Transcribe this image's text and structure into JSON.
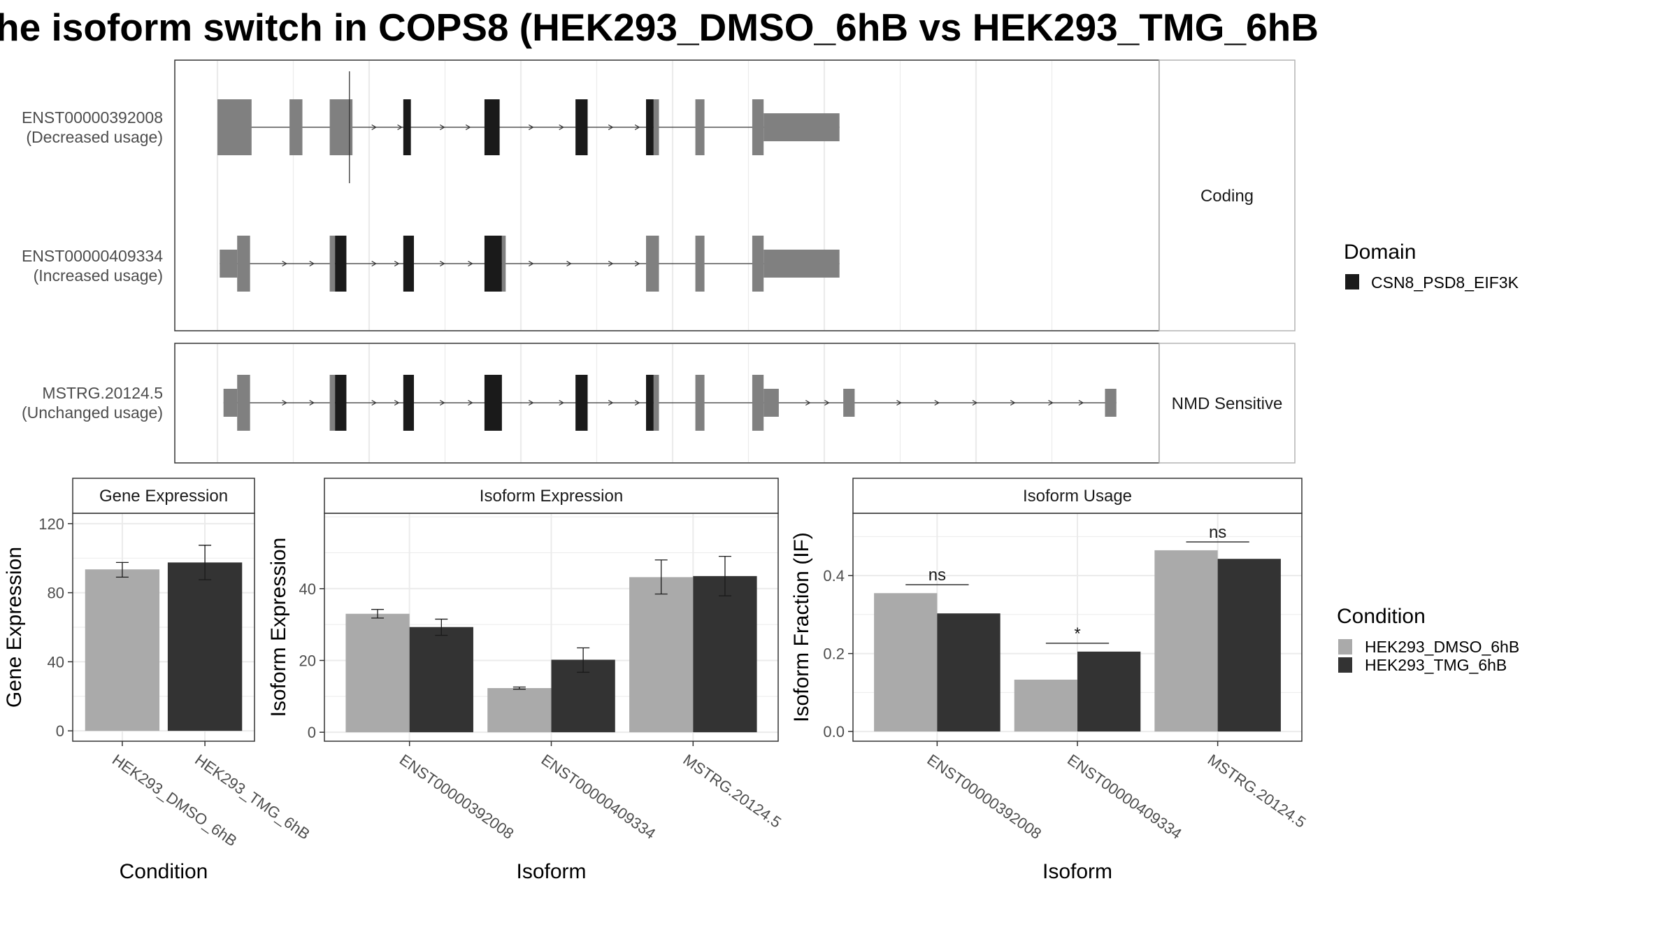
{
  "title": "he isoform switch in COPS8 (HEK293_DMSO_6hB vs HEK293_TMG_6hB",
  "colors": {
    "utr": "#808080",
    "domain": "#1a1a1a",
    "dmso": "#aaaaaa",
    "tmg": "#333333",
    "grid": "#ebebeb",
    "panel_border": "#333333",
    "strip_border": "#b3b3b3"
  },
  "structure": {
    "groups": [
      {
        "label": "Coding",
        "isoforms": [
          {
            "id": "ENST00000392008",
            "usage": "(Decreased usage)",
            "exons": [
              [
                0,
                4.5,
                "utr"
              ],
              [
                9.5,
                11.2,
                "utr"
              ],
              [
                14.8,
                17.8,
                "utr"
              ],
              [
                24.5,
                25.5,
                "domain"
              ],
              [
                35.2,
                37.2,
                "domain"
              ],
              [
                47.2,
                48.8,
                "domain"
              ],
              [
                56.5,
                57.5,
                "domain"
              ],
              [
                57.5,
                58.2,
                "utr"
              ],
              [
                63,
                64.2,
                "utr"
              ],
              [
                70.5,
                72,
                "utr"
              ],
              [
                72,
                82,
                "utr-half"
              ]
            ],
            "arrows": [
              20.8,
              24.2,
              29.8,
              33.2,
              41.5,
              45.5,
              52,
              55.5
            ]
          },
          {
            "id": "ENST00000409334",
            "usage": "(Increased usage)",
            "exons": [
              [
                0.3,
                2.6,
                "utr-half"
              ],
              [
                2.6,
                4.3,
                "utr"
              ],
              [
                14.8,
                15.5,
                "utr"
              ],
              [
                15.5,
                17,
                "domain"
              ],
              [
                24.5,
                25.9,
                "domain"
              ],
              [
                35.2,
                37.5,
                "domain"
              ],
              [
                37.5,
                38,
                "utr"
              ],
              [
                56.5,
                58.2,
                "utr"
              ],
              [
                63,
                64.2,
                "utr"
              ],
              [
                70.5,
                72,
                "utr"
              ],
              [
                72,
                82,
                "utr-half"
              ]
            ],
            "arrows": [
              9,
              12.6,
              20.8,
              23.8,
              29.8,
              33.5,
              41.5,
              46.5,
              52,
              55.5
            ]
          }
        ]
      },
      {
        "label": "NMD Sensitive",
        "isoforms": [
          {
            "id": "MSTRG.20124.5",
            "usage": "(Unchanged usage)",
            "exons": [
              [
                0.8,
                2.6,
                "utr-half"
              ],
              [
                2.6,
                4.3,
                "utr"
              ],
              [
                14.8,
                15.5,
                "utr"
              ],
              [
                15.5,
                17,
                "domain"
              ],
              [
                24.5,
                25.9,
                "domain"
              ],
              [
                35.2,
                37.5,
                "domain"
              ],
              [
                47.2,
                48.8,
                "domain"
              ],
              [
                56.5,
                57.5,
                "domain"
              ],
              [
                57.5,
                58.2,
                "utr"
              ],
              [
                63,
                64.2,
                "utr"
              ],
              [
                70.5,
                72,
                "utr"
              ],
              [
                72,
                74,
                "utr-half"
              ],
              [
                82.5,
                84,
                "utr-half"
              ],
              [
                117,
                118.5,
                "utr-half"
              ]
            ],
            "arrows": [
              9,
              12.6,
              20.8,
              23.8,
              29.8,
              33.5,
              41.5,
              45.5,
              52,
              55.5,
              78,
              80.5,
              90,
              95,
              100,
              105,
              110,
              114
            ]
          }
        ]
      }
    ],
    "domain_legend_title": "Domain",
    "domain_legend_item": "CSN8_PSD8_EIF3K"
  },
  "chart_data": [
    {
      "type": "bar",
      "title": "Gene Expression",
      "xlabel": "Condition",
      "ylabel": "Gene Expression",
      "ylim": [
        -6,
        126
      ],
      "yticks": [
        0,
        40,
        80,
        120
      ],
      "categories": [
        "HEK293_DMSO_6hB",
        "HEK293_TMG_6hB"
      ],
      "series": [
        {
          "values": [
            93.5,
            97.5
          ],
          "err_low": [
            89,
            87.5
          ],
          "err_high": [
            97.5,
            107.5
          ]
        }
      ]
    },
    {
      "type": "bar",
      "title": "Isoform Expression",
      "xlabel": "Isoform",
      "ylabel": "Isoform Expression",
      "ylim": [
        -2.5,
        61
      ],
      "yticks": [
        0,
        20,
        40
      ],
      "categories": [
        "ENST00000392008",
        "ENST00000409334",
        "MSTRG.20124.5"
      ],
      "series": [
        {
          "name": "HEK293_DMSO_6hB",
          "values": [
            33,
            12.3,
            43.2
          ],
          "err_low": [
            31.8,
            12,
            38.5
          ],
          "err_high": [
            34.2,
            12.6,
            48
          ]
        },
        {
          "name": "HEK293_TMG_6hB",
          "values": [
            29.3,
            20.2,
            43.5
          ],
          "err_low": [
            27,
            16.7,
            38
          ],
          "err_high": [
            31.5,
            23.5,
            49
          ]
        }
      ]
    },
    {
      "type": "bar",
      "title": "Isoform Usage",
      "xlabel": "Isoform",
      "ylabel": "Isoform Fraction (IF)",
      "ylim": [
        -0.025,
        0.56
      ],
      "yticks": [
        0.0,
        0.2,
        0.4
      ],
      "ytick_labels": [
        "0.0",
        "0.2",
        "0.4"
      ],
      "categories": [
        "ENST00000392008",
        "ENST00000409334",
        "MSTRG.20124.5"
      ],
      "series": [
        {
          "name": "HEK293_DMSO_6hB",
          "values": [
            0.355,
            0.133,
            0.465
          ]
        },
        {
          "name": "HEK293_TMG_6hB",
          "values": [
            0.303,
            0.205,
            0.443
          ]
        }
      ],
      "significance": [
        "ns",
        "*",
        "ns"
      ]
    }
  ],
  "condition_legend": {
    "title": "Condition",
    "items": [
      "HEK293_DMSO_6hB",
      "HEK293_TMG_6hB"
    ]
  }
}
